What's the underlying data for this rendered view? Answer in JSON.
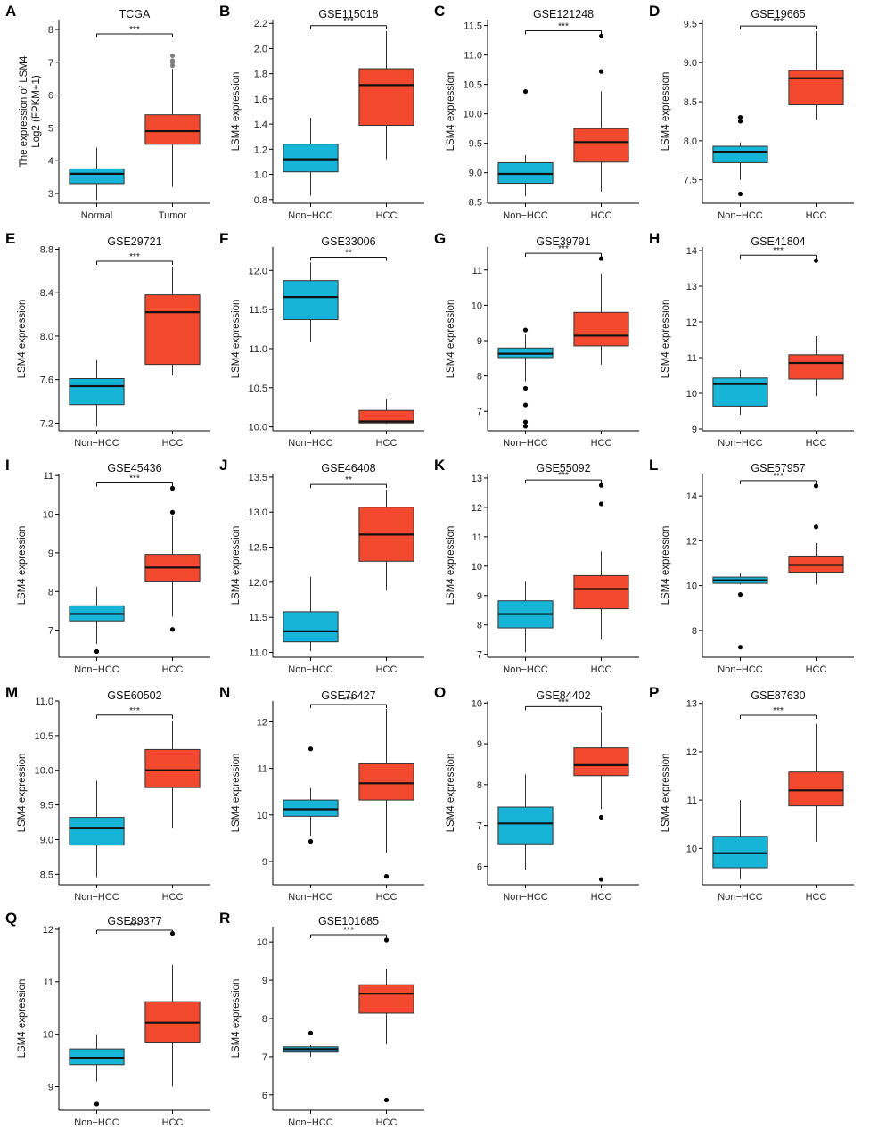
{
  "colors": {
    "group1": "#16b4d6",
    "group2": "#f2492f",
    "axis": "#000000",
    "outlier": "#000000",
    "tcga_outlier": "#7f7f7f"
  },
  "chart_data": [
    {
      "label": "A",
      "title": "TCGA",
      "type": "box",
      "ylabel": "The expression of LSM4",
      "ylabel2": "Log2 (FPKM+1)",
      "ylim": [
        2.7,
        8.3
      ],
      "yticks": [
        "3",
        "4",
        "5",
        "6",
        "7",
        "8"
      ],
      "significance": "***",
      "outlier_color": "gray",
      "groups": [
        {
          "name": "Normal",
          "min": 2.8,
          "q1": 3.3,
          "median": 3.6,
          "q3": 3.75,
          "max": 4.4,
          "outliers": []
        },
        {
          "name": "Tumor",
          "min": 3.2,
          "q1": 4.5,
          "median": 4.9,
          "q3": 5.4,
          "max": 6.8,
          "outliers": [
            6.9,
            7.0,
            7.05,
            7.2
          ]
        }
      ]
    },
    {
      "label": "B",
      "title": "GSE115018",
      "type": "box",
      "ylabel": "LSM4 expression",
      "ylim": [
        0.77,
        2.23
      ],
      "yticks": [
        "0.8",
        "1.0",
        "1.2",
        "1.4",
        "1.6",
        "1.8",
        "2.0",
        "2.2"
      ],
      "significance": "***",
      "groups": [
        {
          "name": "Non−HCC",
          "min": 0.83,
          "q1": 1.02,
          "median": 1.12,
          "q3": 1.24,
          "max": 1.45,
          "outliers": []
        },
        {
          "name": "HCC",
          "min": 1.12,
          "q1": 1.39,
          "median": 1.71,
          "q3": 1.84,
          "max": 2.14,
          "outliers": []
        }
      ]
    },
    {
      "label": "C",
      "title": "GSE121248",
      "type": "box",
      "ylabel": "LSM4 expression",
      "ylim": [
        8.48,
        11.6
      ],
      "yticks": [
        "8.5",
        "9.0",
        "9.5",
        "10.0",
        "10.5",
        "11.0",
        "11.5"
      ],
      "significance": "***",
      "groups": [
        {
          "name": "Non−HCC",
          "min": 8.6,
          "q1": 8.82,
          "median": 8.98,
          "q3": 9.17,
          "max": 9.3,
          "outliers": [
            10.38
          ]
        },
        {
          "name": "HCC",
          "min": 8.68,
          "q1": 9.18,
          "median": 9.52,
          "q3": 9.75,
          "max": 10.38,
          "outliers": [
            10.72,
            11.32
          ]
        }
      ]
    },
    {
      "label": "D",
      "title": "GSE19665",
      "type": "box",
      "ylabel": "LSM4 expression",
      "ylim": [
        7.2,
        9.55
      ],
      "yticks": [
        "7.5",
        "8.0",
        "8.5",
        "9.0",
        "9.5"
      ],
      "significance": "***",
      "groups": [
        {
          "name": "Non−HCC",
          "min": 7.5,
          "q1": 7.72,
          "median": 7.86,
          "q3": 7.93,
          "max": 7.98,
          "outliers": [
            8.25,
            8.3,
            7.32
          ]
        },
        {
          "name": "HCC",
          "min": 8.27,
          "q1": 8.46,
          "median": 8.8,
          "q3": 8.9,
          "max": 9.4,
          "outliers": []
        }
      ]
    },
    {
      "label": "E",
      "title": "GSE29721",
      "type": "box",
      "ylabel": "LSM4 expression",
      "ylim": [
        7.13,
        8.82
      ],
      "yticks": [
        "7.2",
        "7.6",
        "8.0",
        "8.4",
        "8.8"
      ],
      "significance": "***",
      "groups": [
        {
          "name": "Non−HCC",
          "min": 7.17,
          "q1": 7.37,
          "median": 7.54,
          "q3": 7.61,
          "max": 7.78,
          "outliers": []
        },
        {
          "name": "HCC",
          "min": 7.64,
          "q1": 7.74,
          "median": 8.22,
          "q3": 8.38,
          "max": 8.64,
          "outliers": []
        }
      ]
    },
    {
      "label": "F",
      "title": "GSE33006",
      "type": "box",
      "ylabel": "LSM4 expression",
      "ylim": [
        9.95,
        12.3
      ],
      "yticks": [
        "10.0",
        "10.5",
        "11.0",
        "11.5",
        "12.0"
      ],
      "significance": "**",
      "groups": [
        {
          "name": "Non−HCC",
          "min": 11.08,
          "q1": 11.37,
          "median": 11.66,
          "q3": 11.87,
          "max": 12.1,
          "outliers": []
        },
        {
          "name": "HCC",
          "min": 10.04,
          "q1": 10.05,
          "median": 10.07,
          "q3": 10.21,
          "max": 10.36,
          "outliers": []
        }
      ]
    },
    {
      "label": "G",
      "title": "GSE39791",
      "type": "box",
      "ylabel": "LSM4 expression",
      "ylim": [
        6.45,
        11.65
      ],
      "yticks": [
        "7",
        "8",
        "9",
        "10",
        "11"
      ],
      "significance": "***",
      "groups": [
        {
          "name": "Non−HCC",
          "min": 7.85,
          "q1": 8.52,
          "median": 8.63,
          "q3": 8.79,
          "max": 9.17,
          "outliers": [
            9.3,
            7.65,
            7.18,
            6.7,
            6.58
          ]
        },
        {
          "name": "HCC",
          "min": 8.32,
          "q1": 8.85,
          "median": 9.14,
          "q3": 9.8,
          "max": 10.9,
          "outliers": [
            11.32
          ]
        }
      ]
    },
    {
      "label": "H",
      "title": "GSE41804",
      "type": "box",
      "ylabel": "LSM4 expression",
      "ylim": [
        8.95,
        14.1
      ],
      "yticks": [
        "9",
        "10",
        "11",
        "12",
        "13",
        "14"
      ],
      "significance": "***",
      "groups": [
        {
          "name": "Non−HCC",
          "min": 9.4,
          "q1": 9.64,
          "median": 10.26,
          "q3": 10.43,
          "max": 10.65,
          "outliers": []
        },
        {
          "name": "HCC",
          "min": 9.92,
          "q1": 10.4,
          "median": 10.85,
          "q3": 11.08,
          "max": 11.6,
          "outliers": [
            13.72
          ]
        }
      ]
    },
    {
      "label": "I",
      "title": "GSE45436",
      "type": "box",
      "ylabel": "LSM4 expression",
      "ylim": [
        6.3,
        11.05
      ],
      "yticks": [
        "7",
        "8",
        "9",
        "10",
        "11"
      ],
      "significance": "***",
      "groups": [
        {
          "name": "Non−HCC",
          "min": 6.65,
          "q1": 7.24,
          "median": 7.42,
          "q3": 7.63,
          "max": 8.12,
          "outliers": [
            6.45
          ]
        },
        {
          "name": "HCC",
          "min": 7.35,
          "q1": 8.25,
          "median": 8.62,
          "q3": 8.96,
          "max": 9.95,
          "outliers": [
            10.05,
            10.67,
            7.02
          ]
        }
      ]
    },
    {
      "label": "J",
      "title": "GSE46408",
      "type": "box",
      "ylabel": "LSM4 expression",
      "ylim": [
        10.93,
        13.55
      ],
      "yticks": [
        "11.0",
        "11.5",
        "12.0",
        "12.5",
        "13.0",
        "13.5"
      ],
      "significance": "**",
      "groups": [
        {
          "name": "Non−HCC",
          "min": 11.02,
          "q1": 11.15,
          "median": 11.3,
          "q3": 11.58,
          "max": 12.08,
          "outliers": []
        },
        {
          "name": "HCC",
          "min": 11.88,
          "q1": 12.3,
          "median": 12.68,
          "q3": 13.07,
          "max": 13.32,
          "outliers": []
        }
      ]
    },
    {
      "label": "K",
      "title": "GSE55092",
      "type": "box",
      "ylabel": "LSM4 expression",
      "ylim": [
        6.9,
        13.15
      ],
      "yticks": [
        "7",
        "8",
        "9",
        "10",
        "11",
        "12",
        "13"
      ],
      "significance": "***",
      "groups": [
        {
          "name": "Non−HCC",
          "min": 7.08,
          "q1": 7.9,
          "median": 8.37,
          "q3": 8.82,
          "max": 9.47,
          "outliers": []
        },
        {
          "name": "HCC",
          "min": 7.5,
          "q1": 8.55,
          "median": 9.22,
          "q3": 9.68,
          "max": 10.5,
          "outliers": [
            12.12,
            12.75
          ]
        }
      ]
    },
    {
      "label": "L",
      "title": "GSE57957",
      "type": "box",
      "ylabel": "LSM4 expression",
      "ylim": [
        6.8,
        15.0
      ],
      "yticks": [
        "8",
        "10",
        "12",
        "14"
      ],
      "significance": "***",
      "groups": [
        {
          "name": "Non−HCC",
          "min": 10.05,
          "q1": 10.1,
          "median": 10.24,
          "q3": 10.38,
          "max": 10.55,
          "outliers": [
            9.6,
            7.25
          ]
        },
        {
          "name": "HCC",
          "min": 10.05,
          "q1": 10.6,
          "median": 10.92,
          "q3": 11.32,
          "max": 11.9,
          "outliers": [
            12.62,
            14.45
          ]
        }
      ]
    },
    {
      "label": "M",
      "title": "GSE60502",
      "type": "box",
      "ylabel": "LSM4 expression",
      "ylim": [
        8.35,
        11.0
      ],
      "yticks": [
        "8.5",
        "9.0",
        "9.5",
        "10.0",
        "10.5",
        "11.0"
      ],
      "significance": "***",
      "groups": [
        {
          "name": "Non−HCC",
          "min": 8.46,
          "q1": 8.92,
          "median": 9.17,
          "q3": 9.32,
          "max": 9.85,
          "outliers": []
        },
        {
          "name": "HCC",
          "min": 9.17,
          "q1": 9.75,
          "median": 10.0,
          "q3": 10.3,
          "max": 10.72,
          "outliers": []
        }
      ]
    },
    {
      "label": "N",
      "title": "GSE76427",
      "type": "box",
      "ylabel": "LSM4 expression",
      "ylim": [
        8.5,
        12.45
      ],
      "yticks": [
        "9",
        "10",
        "11",
        "12"
      ],
      "significance": "***",
      "groups": [
        {
          "name": "Non−HCC",
          "min": 9.55,
          "q1": 9.97,
          "median": 10.12,
          "q3": 10.32,
          "max": 10.58,
          "outliers": [
            11.42,
            9.43
          ]
        },
        {
          "name": "HCC",
          "min": 9.18,
          "q1": 10.32,
          "median": 10.68,
          "q3": 11.1,
          "max": 12.28,
          "outliers": [
            8.68
          ]
        }
      ]
    },
    {
      "label": "O",
      "title": "GSE84402",
      "type": "box",
      "ylabel": "LSM4 expression",
      "ylim": [
        5.55,
        10.05
      ],
      "yticks": [
        "6",
        "7",
        "8",
        "9",
        "10"
      ],
      "significance": "***",
      "groups": [
        {
          "name": "Non−HCC",
          "min": 5.92,
          "q1": 6.55,
          "median": 7.05,
          "q3": 7.45,
          "max": 8.25,
          "outliers": []
        },
        {
          "name": "HCC",
          "min": 7.4,
          "q1": 8.22,
          "median": 8.48,
          "q3": 8.9,
          "max": 9.78,
          "outliers": [
            7.2,
            5.68
          ]
        }
      ]
    },
    {
      "label": "P",
      "title": "GSE87630",
      "type": "box",
      "ylabel": "LSM4 expression",
      "ylim": [
        9.25,
        13.05
      ],
      "yticks": [
        "10",
        "11",
        "12",
        "13"
      ],
      "significance": "***",
      "groups": [
        {
          "name": "Non−HCC",
          "min": 9.36,
          "q1": 9.6,
          "median": 9.9,
          "q3": 10.25,
          "max": 11.0,
          "outliers": []
        },
        {
          "name": "HCC",
          "min": 10.14,
          "q1": 10.88,
          "median": 11.2,
          "q3": 11.58,
          "max": 12.58,
          "outliers": []
        }
      ]
    },
    {
      "label": "Q",
      "title": "GSE89377",
      "type": "box",
      "ylabel": "LSM4 expression",
      "ylim": [
        8.55,
        12.05
      ],
      "yticks": [
        "9",
        "10",
        "11",
        "12"
      ],
      "significance": "***",
      "groups": [
        {
          "name": "Non−HCC",
          "min": 9.1,
          "q1": 9.42,
          "median": 9.55,
          "q3": 9.72,
          "max": 10.0,
          "outliers": [
            8.67
          ]
        },
        {
          "name": "HCC",
          "min": 9.0,
          "q1": 9.85,
          "median": 10.22,
          "q3": 10.62,
          "max": 11.32,
          "outliers": [
            11.92
          ]
        }
      ]
    },
    {
      "label": "R",
      "title": "GSE101685",
      "type": "box",
      "ylabel": "LSM4 expression",
      "ylim": [
        5.6,
        10.4
      ],
      "yticks": [
        "6",
        "7",
        "8",
        "9",
        "10"
      ],
      "significance": "***",
      "groups": [
        {
          "name": "Non−HCC",
          "min": 7.0,
          "q1": 7.12,
          "median": 7.2,
          "q3": 7.26,
          "max": 7.3,
          "outliers": [
            7.62
          ]
        },
        {
          "name": "HCC",
          "min": 7.32,
          "q1": 8.14,
          "median": 8.65,
          "q3": 8.88,
          "max": 9.3,
          "outliers": [
            10.05,
            5.87
          ]
        }
      ]
    }
  ]
}
